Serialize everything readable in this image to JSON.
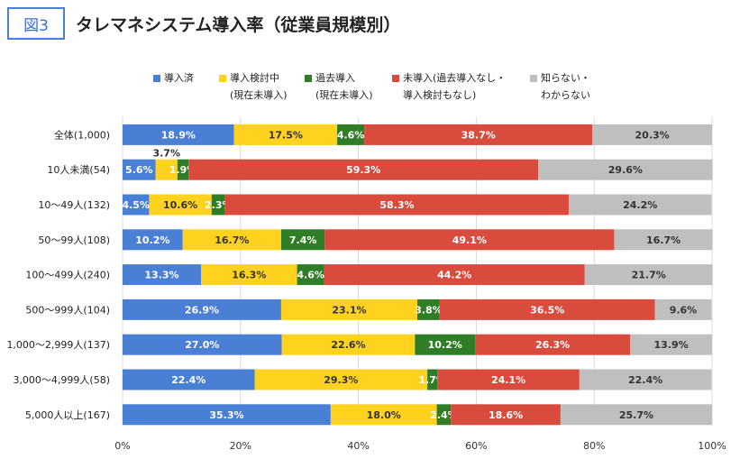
{
  "figure_label": "図3",
  "chart_title": "タレマネシステム導入率（従業員規模別）",
  "chart_data": {
    "type": "bar",
    "orientation": "horizontal",
    "stacked": true,
    "categories": [
      "全体(1,000)",
      "10人未満(54)",
      "10～49人(132)",
      "50～99人(108)",
      "100～499人(240)",
      "500～999人(104)",
      "1,000～2,999人(137)",
      "3,000～4,999人(58)",
      "5,000人以上(167)"
    ],
    "series": [
      {
        "name": "導入済",
        "name_line2": "",
        "color": "#4a7fd6",
        "values": [
          18.9,
          5.6,
          4.5,
          10.2,
          13.3,
          26.9,
          27.0,
          22.4,
          35.3
        ]
      },
      {
        "name": "導入検討中",
        "name_line2": "(現在未導入)",
        "color": "#ffd21f",
        "values": [
          17.5,
          3.7,
          10.6,
          16.7,
          16.3,
          23.1,
          22.6,
          29.3,
          18.0
        ]
      },
      {
        "name": "過去導入",
        "name_line2": "(現在未導入)",
        "color": "#2f7d26",
        "values": [
          4.6,
          1.9,
          2.3,
          7.4,
          4.6,
          3.8,
          10.2,
          1.7,
          2.4
        ]
      },
      {
        "name": "未導入(過去導入なし・",
        "name_line2": "導入検討もなし)",
        "color": "#d94b3d",
        "values": [
          38.7,
          59.3,
          58.3,
          49.1,
          44.2,
          36.5,
          26.3,
          24.1,
          18.6
        ]
      },
      {
        "name": "知らない・",
        "name_line2": "わからない",
        "color": "#bfbfbf",
        "values": [
          20.3,
          29.6,
          24.2,
          16.7,
          21.7,
          9.6,
          13.9,
          22.4,
          25.7
        ]
      }
    ],
    "data_labels": [
      [
        "18.9%",
        "5.6%",
        "4.5%",
        "10.2%",
        "13.3%",
        "26.9%",
        "27.0%",
        "22.4%",
        "35.3%"
      ],
      [
        "17.5%",
        "3.7%",
        "10.6%",
        "16.7%",
        "16.3%",
        "23.1%",
        "22.6%",
        "29.3%",
        "18.0%"
      ],
      [
        "4.6%",
        "1.9%",
        "2.3%",
        "7.4%",
        "4.6%",
        "3.8%",
        "10.2%",
        "1.7%",
        "2.4%"
      ],
      [
        "38.7%",
        "59.3%",
        "58.3%",
        "49.1%",
        "44.2%",
        "36.5%",
        "26.3%",
        "24.1%",
        "18.6%"
      ],
      [
        "20.3%",
        "29.6%",
        "24.2%",
        "16.7%",
        "21.7%",
        "9.6%",
        "13.9%",
        "22.4%",
        "25.7%"
      ]
    ],
    "x_ticks": [
      "0%",
      "20%",
      "40%",
      "60%",
      "80%",
      "100%"
    ],
    "xlim": [
      0,
      100
    ],
    "grid": "vertical",
    "legend_position": "top"
  }
}
